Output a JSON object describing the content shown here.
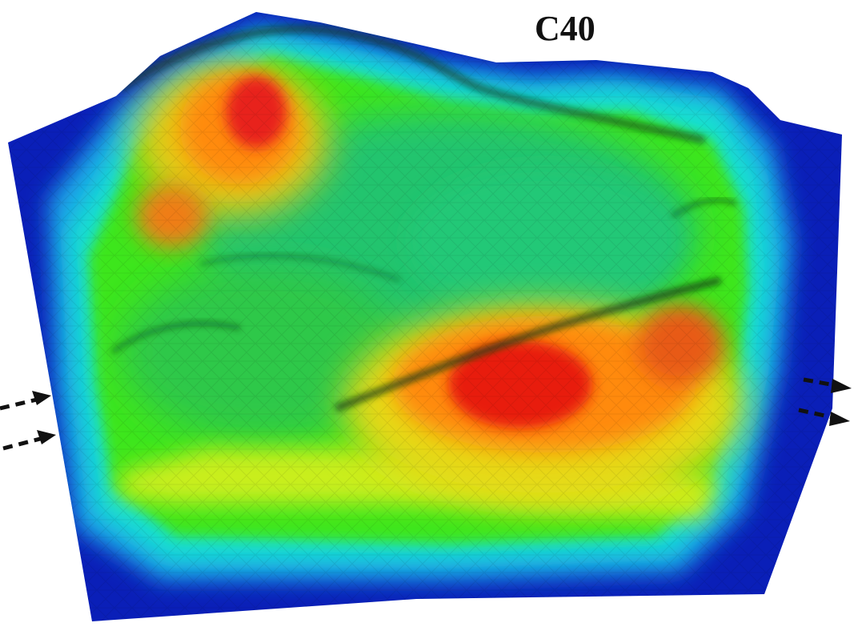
{
  "figure": {
    "title": "C40",
    "colormap": [
      "#0a1fb8",
      "#1a6fe0",
      "#18e0e0",
      "#22e06a",
      "#22c870",
      "#6fe81a",
      "#e8e818",
      "#ff8a10",
      "#e81c10"
    ],
    "arrow_color": "#111111",
    "inlet_arrows_count": 2,
    "outlet_arrows_count": 2,
    "legend": "",
    "axes": ""
  }
}
